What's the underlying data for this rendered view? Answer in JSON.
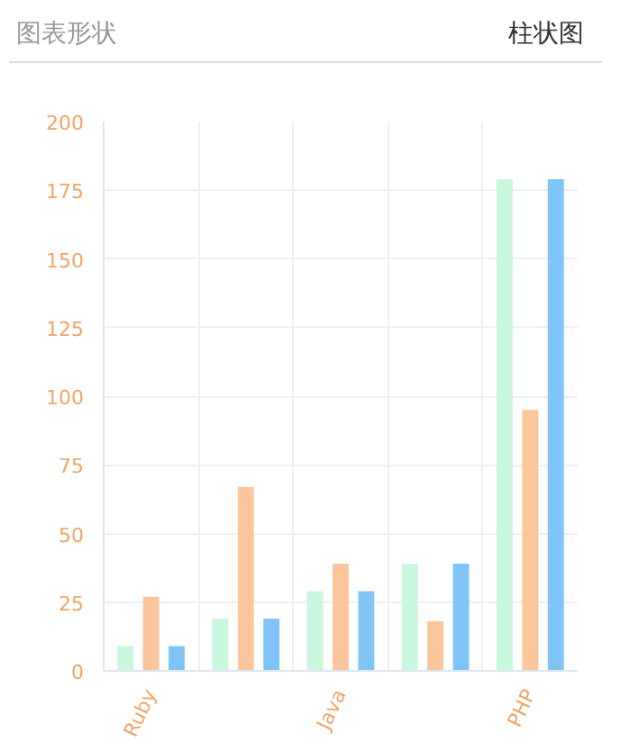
{
  "chart_data": {
    "type": "bar",
    "title": "图表形状",
    "annotations": [
      "柱状图"
    ],
    "categories": [
      "Ruby",
      null,
      "Java",
      null,
      "PHP"
    ],
    "series": [
      {
        "color": "#c8f7de",
        "values": [
          9,
          19,
          29,
          39,
          179
        ]
      },
      {
        "color": "#fcc69c",
        "values": [
          27,
          67,
          39,
          18,
          95
        ]
      },
      {
        "color": "#80c4f8",
        "values": [
          9,
          19,
          29,
          39,
          179
        ]
      }
    ],
    "ylim": [
      0,
      200
    ],
    "yticks": [
      0,
      25,
      50,
      75,
      100,
      125,
      150,
      175,
      200
    ],
    "grid": true
  }
}
